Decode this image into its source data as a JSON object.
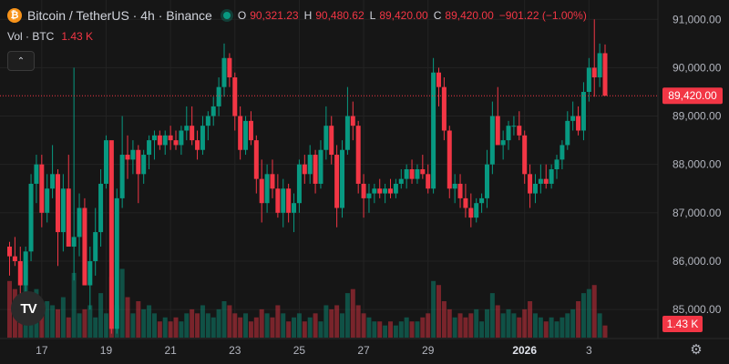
{
  "header": {
    "symbol_icon": "bitcoin-icon",
    "symbol_glyph": "₿",
    "title": "Bitcoin / TetherUS · 4h · Binance",
    "market_status": "market-open-dot",
    "ohlc": {
      "o_label": "O",
      "o": "90,321.23",
      "h_label": "H",
      "h": "90,480.62",
      "l_label": "L",
      "l": "89,420.00",
      "c_label": "C",
      "c": "89,420.00",
      "change": "−901.22 (−1.00%)"
    },
    "volume_label": "Vol · BTC",
    "volume_value": "1.43 K",
    "collapse_glyph": "⌃"
  },
  "colors": {
    "up": "#089981",
    "down": "#f23645",
    "bg": "#161616",
    "grid": "#232323",
    "text": "#d1d4dc"
  },
  "last_price_label": "89,420.00",
  "last_volume_label": "1.43 K",
  "logo_text": "TV",
  "settings_icon": "gear-icon",
  "chart_data": {
    "type": "candlestick",
    "interval": "4h",
    "y_ticks": [
      85000,
      86000,
      87000,
      88000,
      89000,
      90000,
      91000
    ],
    "y_tick_labels": [
      "85,000.00",
      "86,000.00",
      "87,000.00",
      "88,000.00",
      "89,000.00",
      "90,000.00",
      "91,000.00"
    ],
    "ylim": [
      84400,
      91400
    ],
    "x_ticks": [
      {
        "label": "17",
        "index": 6
      },
      {
        "label": "19",
        "index": 18
      },
      {
        "label": "21",
        "index": 30
      },
      {
        "label": "23",
        "index": 42
      },
      {
        "label": "25",
        "index": 54
      },
      {
        "label": "27",
        "index": 66
      },
      {
        "label": "29",
        "index": 78
      },
      {
        "label": "2026",
        "index": 96,
        "bold": true
      },
      {
        "label": "3",
        "index": 108
      }
    ],
    "ohlcv": [
      [
        86300,
        86400,
        85700,
        86100,
        70
      ],
      [
        86100,
        86500,
        85900,
        86000,
        60
      ],
      [
        86000,
        86300,
        85300,
        85500,
        50
      ],
      [
        85500,
        86300,
        85300,
        86200,
        90
      ],
      [
        86200,
        87800,
        86000,
        87600,
        55
      ],
      [
        87600,
        88200,
        87200,
        88000,
        60
      ],
      [
        88000,
        88200,
        86700,
        87000,
        30
      ],
      [
        87000,
        87800,
        86800,
        87500,
        45
      ],
      [
        87500,
        88400,
        87300,
        87800,
        40
      ],
      [
        87800,
        87900,
        85900,
        86600,
        35
      ],
      [
        86600,
        87800,
        86200,
        87500,
        50
      ],
      [
        87500,
        88200,
        87100,
        86300,
        25
      ],
      [
        86300,
        90000,
        85600,
        86500,
        80
      ],
      [
        86500,
        87400,
        86100,
        87100,
        30
      ],
      [
        87100,
        87300,
        85800,
        85500,
        35
      ],
      [
        85500,
        86300,
        85000,
        86000,
        40
      ],
      [
        86000,
        87100,
        85700,
        86600,
        25
      ],
      [
        86600,
        87900,
        86300,
        87600,
        55
      ],
      [
        87600,
        88600,
        87500,
        88500,
        30
      ],
      [
        88500,
        88400,
        84500,
        84600,
        75
      ],
      [
        84600,
        87500,
        84500,
        87300,
        40
      ],
      [
        87300,
        89000,
        87100,
        88200,
        85
      ],
      [
        88200,
        88600,
        87700,
        88100,
        50
      ],
      [
        88100,
        88500,
        87800,
        88300,
        30
      ],
      [
        88300,
        88400,
        87200,
        87800,
        45
      ],
      [
        87800,
        88300,
        87600,
        88200,
        35
      ],
      [
        88200,
        88600,
        87900,
        88500,
        40
      ],
      [
        88500,
        88700,
        88100,
        88600,
        30
      ],
      [
        88600,
        88700,
        88300,
        88400,
        20
      ],
      [
        88400,
        88700,
        88200,
        88600,
        25
      ],
      [
        88600,
        88800,
        88300,
        88500,
        20
      ],
      [
        88500,
        88700,
        88300,
        88400,
        25
      ],
      [
        88400,
        88800,
        88200,
        88700,
        20
      ],
      [
        88700,
        89200,
        88500,
        88800,
        30
      ],
      [
        88800,
        89200,
        88400,
        88500,
        35
      ],
      [
        88500,
        88700,
        88100,
        88300,
        30
      ],
      [
        88300,
        89000,
        88200,
        88800,
        40
      ],
      [
        88800,
        89100,
        88500,
        89000,
        30
      ],
      [
        89000,
        89400,
        88800,
        89200,
        25
      ],
      [
        89200,
        89800,
        89000,
        89600,
        35
      ],
      [
        89600,
        90500,
        89400,
        90200,
        45
      ],
      [
        90200,
        90300,
        89600,
        89800,
        40
      ],
      [
        89800,
        89900,
        88700,
        89000,
        30
      ],
      [
        89000,
        89200,
        88100,
        88300,
        25
      ],
      [
        88300,
        89000,
        88200,
        88900,
        30
      ],
      [
        88900,
        89100,
        88400,
        88500,
        20
      ],
      [
        88500,
        88600,
        87400,
        87700,
        25
      ],
      [
        87700,
        88100,
        86800,
        87200,
        35
      ],
      [
        87200,
        88000,
        87000,
        87800,
        30
      ],
      [
        87800,
        88100,
        87300,
        87500,
        25
      ],
      [
        87500,
        87800,
        86900,
        87000,
        40
      ],
      [
        87000,
        87700,
        86700,
        87500,
        30
      ],
      [
        87500,
        87600,
        86800,
        87000,
        20
      ],
      [
        87000,
        87400,
        86600,
        87200,
        25
      ],
      [
        87200,
        88100,
        87000,
        88000,
        30
      ],
      [
        88000,
        88200,
        87600,
        87800,
        20
      ],
      [
        87800,
        88400,
        87600,
        88200,
        25
      ],
      [
        88200,
        88300,
        87400,
        87600,
        30
      ],
      [
        87600,
        88500,
        87500,
        88300,
        20
      ],
      [
        88300,
        89200,
        88100,
        88800,
        40
      ],
      [
        88800,
        89000,
        88000,
        88200,
        35
      ],
      [
        88200,
        88400,
        86700,
        87100,
        40
      ],
      [
        87100,
        88500,
        86900,
        88300,
        30
      ],
      [
        88300,
        89600,
        88200,
        89000,
        55
      ],
      [
        89000,
        89300,
        88500,
        88800,
        60
      ],
      [
        88800,
        88900,
        87400,
        87600,
        40
      ],
      [
        87600,
        87800,
        86900,
        87300,
        30
      ],
      [
        87300,
        87600,
        87000,
        87400,
        25
      ],
      [
        87400,
        87600,
        87200,
        87500,
        20
      ],
      [
        87500,
        87700,
        87300,
        87400,
        20
      ],
      [
        87400,
        87600,
        87200,
        87500,
        15
      ],
      [
        87500,
        87700,
        87300,
        87400,
        20
      ],
      [
        87400,
        87700,
        87300,
        87600,
        15
      ],
      [
        87600,
        87900,
        87500,
        87700,
        20
      ],
      [
        87700,
        88000,
        87500,
        87900,
        25
      ],
      [
        87900,
        88100,
        87600,
        87700,
        20
      ],
      [
        87700,
        88000,
        87600,
        87900,
        20
      ],
      [
        87900,
        88200,
        87700,
        87800,
        25
      ],
      [
        87800,
        88000,
        87400,
        87500,
        30
      ],
      [
        87500,
        90200,
        87400,
        89900,
        70
      ],
      [
        89900,
        90000,
        89200,
        89600,
        65
      ],
      [
        89600,
        89800,
        88500,
        88700,
        45
      ],
      [
        88700,
        88800,
        87300,
        87500,
        35
      ],
      [
        87500,
        87800,
        87200,
        87600,
        25
      ],
      [
        87600,
        87800,
        87100,
        87300,
        30
      ],
      [
        87300,
        87600,
        86900,
        87100,
        25
      ],
      [
        87100,
        87400,
        86700,
        86900,
        30
      ],
      [
        86900,
        87300,
        86800,
        87200,
        35
      ],
      [
        87200,
        87400,
        87000,
        87300,
        20
      ],
      [
        87300,
        88300,
        87100,
        88000,
        35
      ],
      [
        88000,
        89300,
        87800,
        89000,
        55
      ],
      [
        89000,
        89600,
        88700,
        88400,
        40
      ],
      [
        88400,
        88700,
        88100,
        88500,
        30
      ],
      [
        88500,
        88900,
        88300,
        88800,
        35
      ],
      [
        88800,
        89000,
        88600,
        88800,
        30
      ],
      [
        88800,
        89100,
        88500,
        88600,
        25
      ],
      [
        88600,
        88700,
        87600,
        87800,
        35
      ],
      [
        87800,
        88000,
        87100,
        87400,
        45
      ],
      [
        87400,
        87800,
        87200,
        87600,
        30
      ],
      [
        87600,
        88000,
        87400,
        87700,
        25
      ],
      [
        87700,
        88000,
        87500,
        87600,
        20
      ],
      [
        87600,
        88000,
        87500,
        87900,
        25
      ],
      [
        87900,
        88200,
        87700,
        88100,
        20
      ],
      [
        88100,
        88500,
        87900,
        88400,
        25
      ],
      [
        88400,
        89100,
        88300,
        88900,
        30
      ],
      [
        88900,
        89300,
        88700,
        89000,
        35
      ],
      [
        89000,
        89200,
        88600,
        88700,
        45
      ],
      [
        88700,
        89700,
        88500,
        89500,
        55
      ],
      [
        89500,
        90200,
        89300,
        90000,
        60
      ],
      [
        90000,
        91000,
        89400,
        89800,
        65
      ],
      [
        89800,
        90500,
        89600,
        90300,
        30
      ],
      [
        90300,
        90480,
        89420,
        89420,
        15
      ]
    ]
  }
}
